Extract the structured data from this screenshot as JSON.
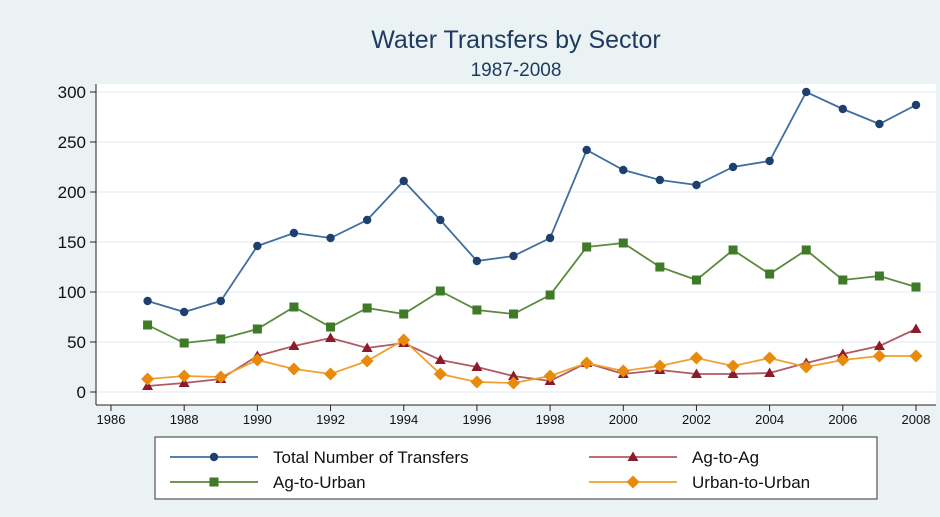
{
  "chart_data": {
    "type": "line",
    "title": "Water Transfers by Sector",
    "subtitle": "1987-2008",
    "xlabel": "",
    "ylabel": "",
    "xlim": [
      1986,
      2008
    ],
    "ylim": [
      0,
      300
    ],
    "x_ticks": [
      1986,
      1988,
      1990,
      1992,
      1994,
      1996,
      1998,
      2000,
      2002,
      2004,
      2006,
      2008
    ],
    "y_ticks": [
      0,
      50,
      100,
      150,
      200,
      250,
      300
    ],
    "grid": true,
    "legend_position": "bottom",
    "x": [
      1987,
      1988,
      1989,
      1990,
      1991,
      1992,
      1993,
      1994,
      1995,
      1996,
      1997,
      1998,
      1999,
      2000,
      2001,
      2002,
      2003,
      2004,
      2005,
      2006,
      2007,
      2008
    ],
    "series": [
      {
        "name": "Total Number of Transfers",
        "color": "#1f3f6e",
        "line_color": "#3f6f9f",
        "marker": "circle",
        "values": [
          91,
          80,
          91,
          146,
          159,
          154,
          172,
          211,
          172,
          131,
          136,
          154,
          242,
          222,
          212,
          207,
          225,
          231,
          300,
          283,
          268,
          287
        ]
      },
      {
        "name": "Ag-to-Ag",
        "color": "#8b1a2b",
        "line_color": "#b05a62",
        "marker": "triangle",
        "values": [
          6,
          9,
          13,
          36,
          46,
          54,
          44,
          49,
          32,
          25,
          16,
          11,
          29,
          18,
          22,
          18,
          18,
          19,
          29,
          38,
          46,
          63
        ]
      },
      {
        "name": "Ag-to-Urban",
        "color": "#3e7a28",
        "line_color": "#5a8a3c",
        "marker": "square",
        "values": [
          67,
          49,
          53,
          63,
          85,
          65,
          84,
          78,
          101,
          82,
          78,
          97,
          145,
          149,
          125,
          112,
          142,
          118,
          142,
          112,
          116,
          105
        ]
      },
      {
        "name": "Urban-to-Urban",
        "color": "#e88a0c",
        "line_color": "#f0a030",
        "marker": "diamond",
        "values": [
          13,
          16,
          15,
          32,
          23,
          18,
          31,
          52,
          18,
          10,
          9,
          16,
          29,
          21,
          26,
          34,
          26,
          34,
          25,
          32,
          36,
          36
        ]
      }
    ]
  }
}
